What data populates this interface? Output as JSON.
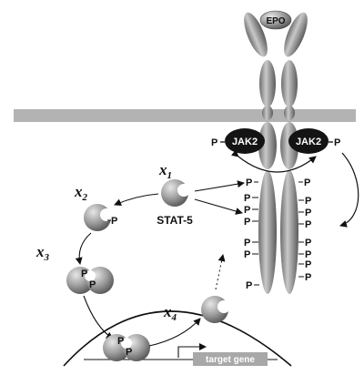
{
  "labels": {
    "epo": "EPO",
    "jak_left": "JAK2",
    "jak_right": "JAK2",
    "stat": "STAT-5",
    "target_gene": "target gene",
    "phospho": "P"
  },
  "steps": [
    "x1",
    "x2",
    "x3",
    "x4"
  ],
  "colors": {
    "membrane": "#b3b3b3",
    "receptor": "#9a9a9a",
    "jak": "#141414",
    "gene_box": "#a8a8a8"
  }
}
